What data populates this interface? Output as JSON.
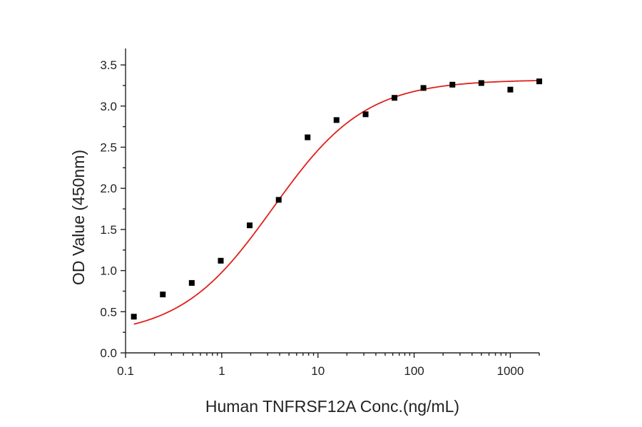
{
  "chart_data": {
    "type": "scatter",
    "title": "",
    "xlabel": "Human TNFRSF12A Conc.(ng/mL)",
    "ylabel": "OD Value (450nm)",
    "x_scale": "log",
    "xlim": [
      0.1,
      2000
    ],
    "ylim": [
      0,
      3.7
    ],
    "x_ticks": [
      {
        "value": 0.1,
        "label": "0.1"
      },
      {
        "value": 1,
        "label": "1"
      },
      {
        "value": 10,
        "label": "10"
      },
      {
        "value": 100,
        "label": "100"
      },
      {
        "value": 1000,
        "label": "1000"
      }
    ],
    "y_ticks": [
      {
        "value": 0,
        "label": "0.0"
      },
      {
        "value": 0.5,
        "label": "0.5"
      },
      {
        "value": 1.0,
        "label": "1.0"
      },
      {
        "value": 1.5,
        "label": "1.5"
      },
      {
        "value": 2.0,
        "label": "2.0"
      },
      {
        "value": 2.5,
        "label": "2.5"
      },
      {
        "value": 3.0,
        "label": "3.0"
      },
      {
        "value": 3.5,
        "label": "3.5"
      }
    ],
    "grid": false,
    "legend": "none",
    "series": [
      {
        "kind": "points",
        "marker": "square",
        "color": "#000000",
        "x": [
          0.122,
          0.244,
          0.488,
          0.977,
          1.95,
          3.91,
          7.81,
          15.6,
          31.3,
          62.5,
          125,
          250,
          500,
          1000,
          2000
        ],
        "y": [
          0.44,
          0.71,
          0.85,
          1.12,
          1.55,
          1.86,
          2.62,
          2.83,
          2.9,
          3.1,
          3.22,
          3.26,
          3.28,
          3.2,
          3.3
        ]
      },
      {
        "kind": "fit",
        "color": "#e0201b",
        "model": "4PL",
        "params": {
          "bottom": 0.2,
          "top": 3.32,
          "ec50": 3.4,
          "hill": 0.9
        },
        "x_range": [
          0.122,
          2000
        ]
      }
    ]
  }
}
